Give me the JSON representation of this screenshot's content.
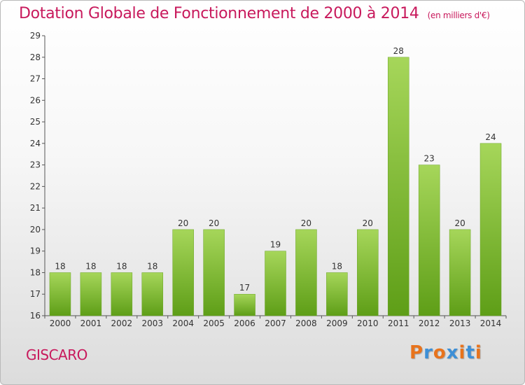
{
  "header": {
    "title": "Dotation Globale de Fonctionnement de 2000 à 2014",
    "unit": "(en milliers d'€)"
  },
  "footer": {
    "commune": "GISCARO",
    "logo": "Proxiti",
    "logo_colors": [
      "#e8731c",
      "#3d8fd6",
      "#e8731c",
      "#3d8fd6",
      "#e8731c",
      "#3d8fd6",
      "#e8731c"
    ]
  },
  "chart_data": {
    "type": "bar",
    "title": "Dotation Globale de Fonctionnement de 2000 à 2014",
    "subtitle": "(en milliers d'€)",
    "categories": [
      "2000",
      "2001",
      "2002",
      "2003",
      "2004",
      "2005",
      "2006",
      "2007",
      "2008",
      "2009",
      "2010",
      "2011",
      "2012",
      "2013",
      "2014"
    ],
    "values": [
      18,
      18,
      18,
      18,
      20,
      20,
      17,
      19,
      20,
      18,
      20,
      28,
      23,
      20,
      24
    ],
    "ylim": [
      16,
      29
    ],
    "yticks": [
      16,
      17,
      18,
      19,
      20,
      21,
      22,
      23,
      24,
      25,
      26,
      27,
      28,
      29
    ],
    "grid": false,
    "bar_color_light": "#a6d65a",
    "bar_color_dark": "#5e9e17"
  }
}
